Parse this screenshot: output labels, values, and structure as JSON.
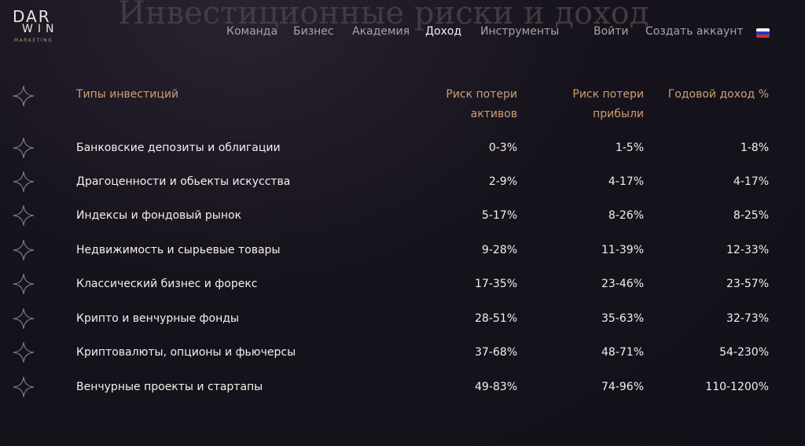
{
  "page": {
    "background_title": "Инвестиционные риски и доход"
  },
  "logo": {
    "line1": "DAR",
    "line2": "WIN",
    "line3": "MARKETING"
  },
  "nav": {
    "items": [
      "Команда",
      "Бизнес",
      "Академия",
      "Доход",
      "Инструменты"
    ],
    "active": "Доход",
    "login": "Войти",
    "signup": "Создать аккаунт",
    "language_flag": "russia-flag-icon"
  },
  "colors": {
    "accent": "#cf9f74",
    "background": "#14121b",
    "text": "#f4f0ec",
    "nav_text": "#a8a3a6"
  },
  "table": {
    "headers": {
      "type": "Типы инвестиций",
      "asset_risk": "Риск потери\nактивов",
      "profit_risk": "Риск потери\nприбыли",
      "annual_income": "Годовой доход %"
    },
    "rows": [
      {
        "name": "Банковские депозиты и облигации",
        "asset_risk": "0-3%",
        "profit_risk": "1-5%",
        "income": "1-8%"
      },
      {
        "name": "Драгоценности и обьекты искусства",
        "asset_risk": "2-9%",
        "profit_risk": "4-17%",
        "income": "4-17%"
      },
      {
        "name": "Индексы и фондовый рынок",
        "asset_risk": "5-17%",
        "profit_risk": "8-26%",
        "income": "8-25%"
      },
      {
        "name": "Недвижимость и сырьевые товары",
        "asset_risk": "9-28%",
        "profit_risk": "11-39%",
        "income": "12-33%"
      },
      {
        "name": "Классический бизнес и форекс",
        "asset_risk": "17-35%",
        "profit_risk": "23-46%",
        "income": "23-57%"
      },
      {
        "name": "Крипто и венчурные фонды",
        "asset_risk": "28-51%",
        "profit_risk": "35-63%",
        "income": "32-73%"
      },
      {
        "name": "Криптовалюты, опционы и фьючерсы",
        "asset_risk": "37-68%",
        "profit_risk": "48-71%",
        "income": "54-230%"
      },
      {
        "name": "Венчурные проекты и стартапы",
        "asset_risk": "49-83%",
        "profit_risk": "74-96%",
        "income": "110-1200%"
      }
    ]
  }
}
